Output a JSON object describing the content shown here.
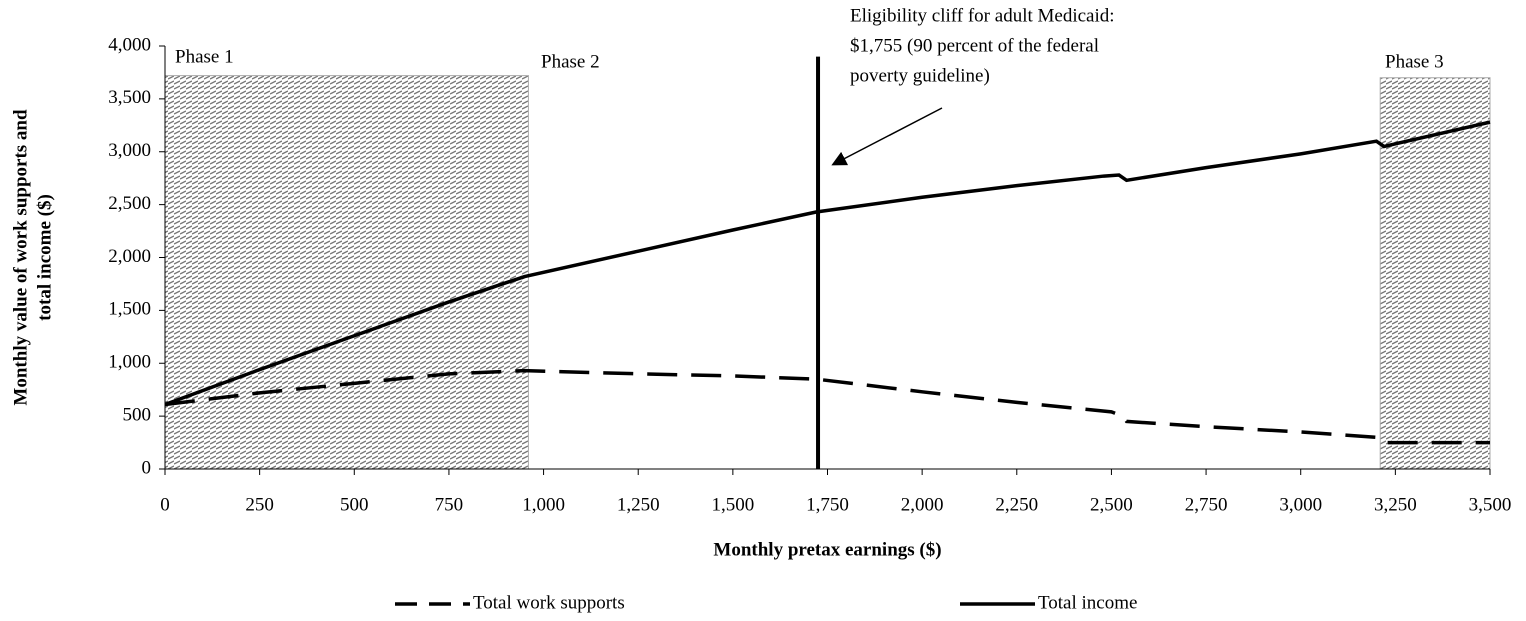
{
  "chart_data": {
    "type": "line",
    "xlabel": "Monthly pretax earnings ($)",
    "ylabel": [
      "Monthly value of work supports and",
      "total income ($)"
    ],
    "xlim": [
      0,
      3500
    ],
    "ylim": [
      0,
      4000
    ],
    "xticks": [
      0,
      250,
      500,
      750,
      {
        "value": 1000,
        "label": "1,000"
      },
      {
        "value": 1250,
        "label": "1,250"
      },
      {
        "value": 1500,
        "label": "1,500"
      },
      {
        "value": 1750,
        "label": "1,750"
      },
      {
        "value": 2000,
        "label": "2,000"
      },
      {
        "value": 2250,
        "label": "2,250"
      },
      {
        "value": 2500,
        "label": "2,500"
      },
      {
        "value": 2750,
        "label": "2,750"
      },
      {
        "value": 3000,
        "label": "3,000"
      },
      {
        "value": 3250,
        "label": "3,250"
      },
      {
        "value": 3500,
        "label": "3,500"
      }
    ],
    "yticks": [
      0,
      500,
      {
        "value": 1000,
        "label": "1,000"
      },
      {
        "value": 1500,
        "label": "1,500"
      },
      {
        "value": 2000,
        "label": "2,000"
      },
      {
        "value": 2500,
        "label": "2,500"
      },
      {
        "value": 3000,
        "label": "3,000"
      },
      {
        "value": 3500,
        "label": "3,500"
      },
      {
        "value": 4000,
        "label": "4,000"
      }
    ],
    "series": [
      {
        "name": "Total work supports",
        "color": "#000000",
        "dash": true,
        "x": [
          0,
          250,
          500,
          750,
          950,
          1250,
          1500,
          1720,
          2000,
          2250,
          2500,
          2530,
          2540,
          2750,
          3000,
          3200,
          3220,
          3500
        ],
        "values": [
          610,
          720,
          810,
          900,
          930,
          900,
          880,
          850,
          730,
          630,
          540,
          500,
          450,
          400,
          350,
          300,
          250,
          250
        ]
      },
      {
        "name": "Total income",
        "color": "#000000",
        "dash": false,
        "x": [
          0,
          250,
          500,
          750,
          950,
          1250,
          1500,
          1720,
          2000,
          2250,
          2480,
          2520,
          2540,
          2750,
          3000,
          3200,
          3220,
          3500
        ],
        "values": [
          610,
          940,
          1260,
          1580,
          1820,
          2060,
          2260,
          2430,
          2570,
          2680,
          2770,
          2780,
          2730,
          2850,
          2980,
          3100,
          3050,
          3280
        ]
      }
    ],
    "phases": [
      {
        "label": "Phase 1",
        "x": [
          0,
          960
        ],
        "top": 3720
      },
      {
        "label": "Phase 2"
      },
      {
        "label": "Phase 3",
        "x": [
          3210,
          3500
        ],
        "top": 3700
      }
    ],
    "cliff": {
      "x": 1725,
      "y": [
        0,
        3900
      ]
    },
    "annotation": [
      "Eligibility cliff for adult Medicaid:",
      "$1,755 (90 percent of the federal",
      "poverty guideline)"
    ]
  }
}
